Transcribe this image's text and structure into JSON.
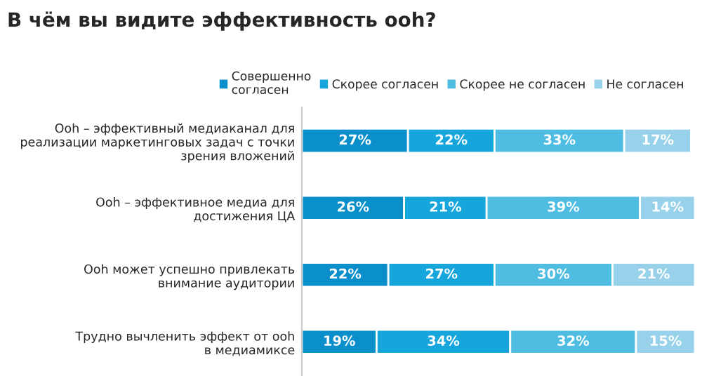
{
  "chart_data": {
    "type": "bar",
    "orientation": "horizontal",
    "stacked": true,
    "title": "В чём вы видите эффективность ooh?",
    "categories": [
      "Ooh – эффективный медиаканал для\nреализации маркетинговых задач с точки\nзрения вложений",
      "Ooh – эффективное медиа для\nдостижения ЦА",
      "Ooh может успешно привлекать\nвнимание аудитории",
      "Трудно вычленить эффект от ooh\nв медиамиксе"
    ],
    "series": [
      {
        "name": "Совершенно\nсогласен",
        "color": "#0b8fcb",
        "values": [
          27,
          26,
          22,
          19
        ],
        "value_labels": [
          "27%",
          "26%",
          "22%",
          "19%"
        ]
      },
      {
        "name": "Скорее согласен",
        "color": "#17a6dc",
        "values": [
          22,
          21,
          27,
          34
        ],
        "value_labels": [
          "22%",
          "21%",
          "27%",
          "34%"
        ]
      },
      {
        "name": "Скорее не согласен",
        "color": "#4fbde2",
        "values": [
          33,
          39,
          30,
          32
        ],
        "value_labels": [
          "33%",
          "39%",
          "30%",
          "32%"
        ]
      },
      {
        "name": "Не согласен",
        "color": "#98d2ea",
        "values": [
          17,
          14,
          21,
          15
        ],
        "value_labels": [
          "17%",
          "14%",
          "21%",
          "15%"
        ]
      }
    ],
    "legend": "top",
    "grid": false
  }
}
